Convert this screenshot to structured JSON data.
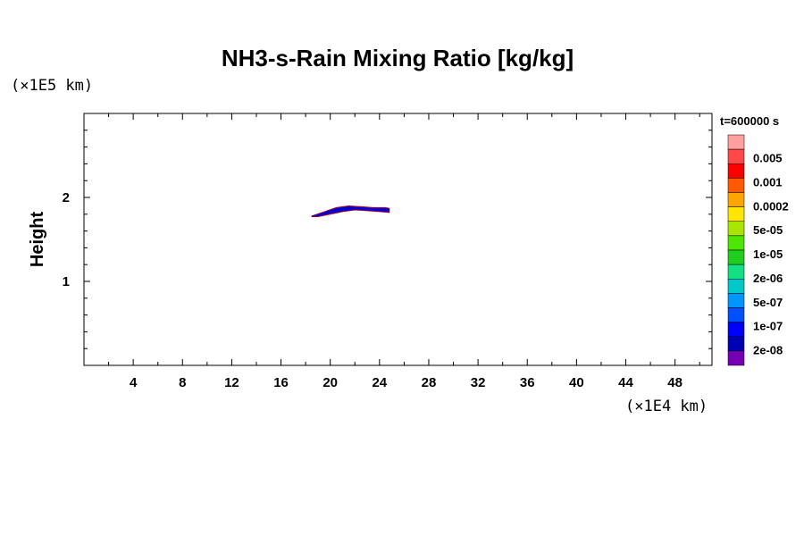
{
  "chart_data": {
    "type": "contour",
    "title": "NH3-s-Rain Mixing Ratio [kg/kg]",
    "xlabel": "",
    "ylabel": "Height",
    "x_multiplier": "(×1E4 km)",
    "y_multiplier": "(×1E5 km)",
    "timestamp": "t=600000 s",
    "xlim": [
      0,
      51
    ],
    "ylim": [
      0,
      3
    ],
    "x_ticks": [
      4,
      8,
      12,
      16,
      20,
      24,
      28,
      32,
      36,
      40,
      44,
      48
    ],
    "x_tick_labels": [
      "4",
      "8",
      "12",
      "16",
      "20",
      "24",
      "28",
      "32",
      "36",
      "40",
      "44",
      "48"
    ],
    "x_minor_step": 2,
    "y_ticks": [
      1,
      2
    ],
    "y_tick_labels": [
      "1",
      "2"
    ],
    "y_minor_step": 0.2,
    "feature": {
      "description_values": "thin band of mixing ratio ~1e-07 kg/kg",
      "x_range": [
        18.5,
        24.8
      ],
      "y_range": [
        1.77,
        1.9
      ],
      "upper_edge": [
        [
          18.5,
          1.78
        ],
        [
          19.5,
          1.83
        ],
        [
          20.5,
          1.88
        ],
        [
          21.5,
          1.9
        ],
        [
          22.5,
          1.89
        ],
        [
          23.5,
          1.88
        ],
        [
          24.5,
          1.88
        ],
        [
          24.8,
          1.87
        ]
      ],
      "lower_edge": [
        [
          24.8,
          1.82
        ],
        [
          24.0,
          1.83
        ],
        [
          23.0,
          1.84
        ],
        [
          22.0,
          1.85
        ],
        [
          21.0,
          1.83
        ],
        [
          20.0,
          1.8
        ],
        [
          19.0,
          1.77
        ],
        [
          18.5,
          1.77
        ]
      ],
      "fill_color": "#0000e0",
      "edge_color": "#cc0000"
    },
    "colorbar": {
      "levels": [
        "0.005",
        "0.001",
        "0.0002",
        "5e-05",
        "1e-05",
        "2e-06",
        "5e-07",
        "1e-07",
        "2e-08"
      ],
      "colors": [
        "#ff9f9f",
        "#ff4848",
        "#ff0000",
        "#ff5a00",
        "#ffa500",
        "#ffe600",
        "#a8e600",
        "#4ee600",
        "#1ecd1e",
        "#12e082",
        "#00c8c8",
        "#0096ff",
        "#0050ff",
        "#0000ff",
        "#0000b4",
        "#7800b4"
      ]
    }
  }
}
